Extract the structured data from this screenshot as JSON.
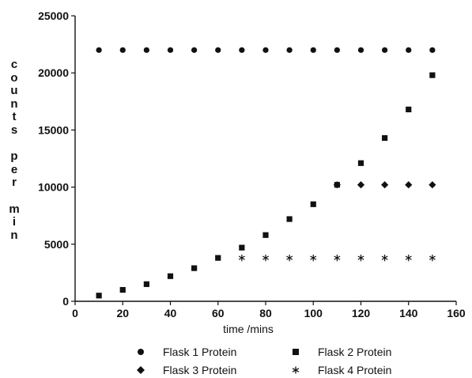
{
  "chart_data": {
    "type": "scatter",
    "title": "",
    "xlabel": "time /mins",
    "ylabel": "counts per min",
    "xlim": [
      0,
      160
    ],
    "ylim": [
      0,
      25000
    ],
    "x_ticks": [
      0,
      20,
      40,
      60,
      80,
      100,
      120,
      140,
      160
    ],
    "x_tick_labels": [
      "0",
      "20",
      "40",
      "60",
      "80",
      "100",
      "120",
      "140",
      "160"
    ],
    "y_ticks": [
      0,
      5000,
      10000,
      15000,
      20000,
      25000
    ],
    "y_tick_labels": [
      "0",
      "5000",
      "10000",
      "15000",
      "20000",
      "25000"
    ],
    "grid": false,
    "legend_position": "bottom",
    "series": [
      {
        "name": "Flask 1 Protein",
        "marker": "circle",
        "x": [
          10,
          20,
          30,
          40,
          50,
          60,
          70,
          80,
          90,
          100,
          110,
          120,
          130,
          140,
          150
        ],
        "y": [
          22000,
          22000,
          22000,
          22000,
          22000,
          22000,
          22000,
          22000,
          22000,
          22000,
          22000,
          22000,
          22000,
          22000,
          22000
        ]
      },
      {
        "name": "Flask 2 Protein",
        "marker": "square",
        "x": [
          10,
          20,
          30,
          40,
          50,
          60,
          70,
          80,
          90,
          100,
          110,
          120,
          130,
          140,
          150
        ],
        "y": [
          500,
          1000,
          1500,
          2200,
          2900,
          3800,
          4700,
          5800,
          7200,
          8500,
          10200,
          12100,
          14300,
          16800,
          19800
        ]
      },
      {
        "name": "Flask 3 Protein",
        "marker": "diamond",
        "x": [
          110,
          120,
          130,
          140,
          150
        ],
        "y": [
          10200,
          10200,
          10200,
          10200,
          10200
        ]
      },
      {
        "name": "Flask 4 Protein",
        "marker": "asterisk",
        "x": [
          70,
          80,
          90,
          100,
          110,
          120,
          130,
          140,
          150
        ],
        "y": [
          3800,
          3800,
          3800,
          3800,
          3800,
          3800,
          3800,
          3800,
          3800
        ]
      }
    ]
  }
}
